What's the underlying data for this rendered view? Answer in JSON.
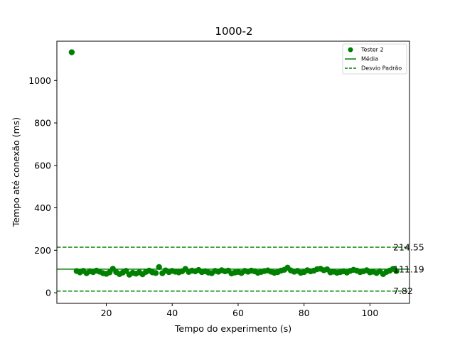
{
  "chart_data": {
    "type": "scatter",
    "title": "1000-2",
    "xlabel": "Tempo do experimento (s)",
    "ylabel": "Tempo até conexão (ms)",
    "xlim": [
      5,
      112
    ],
    "ylim": [
      -50,
      1185
    ],
    "xticks": [
      20,
      40,
      60,
      80,
      100
    ],
    "yticks": [
      0,
      200,
      400,
      600,
      800,
      1000
    ],
    "grid": false,
    "legend_position": "top-right",
    "color": "#008000",
    "series": [
      {
        "name": "Tester 2",
        "x": [
          9.5,
          11,
          12,
          13,
          14,
          15,
          16,
          17,
          18,
          19,
          20,
          21,
          22,
          23,
          24,
          25,
          26,
          27,
          28,
          29,
          30,
          31,
          32,
          33,
          34,
          35,
          36,
          37,
          38,
          39,
          40,
          41,
          42,
          43,
          44,
          45,
          46,
          47,
          48,
          49,
          50,
          51,
          52,
          53,
          54,
          55,
          56,
          57,
          58,
          59,
          60,
          61,
          62,
          63,
          64,
          65,
          66,
          67,
          68,
          69,
          70,
          71,
          72,
          73,
          74,
          75,
          76,
          77,
          78,
          79,
          80,
          81,
          82,
          83,
          84,
          85,
          86,
          87,
          88,
          89,
          90,
          91,
          92,
          93,
          94,
          95,
          96,
          97,
          98,
          99,
          100,
          101,
          102,
          103,
          104,
          105,
          106,
          107,
          108
        ],
        "y": [
          1133,
          102,
          96,
          103,
          92,
          101,
          97,
          104,
          99,
          92,
          89,
          96,
          113,
          97,
          88,
          95,
          103,
          85,
          94,
          90,
          96,
          87,
          98,
          104,
          96,
          93,
          121,
          92,
          105,
          97,
          103,
          99,
          96,
          101,
          112,
          98,
          104,
          101,
          107,
          97,
          101,
          95,
          92,
          103,
          99,
          106,
          101,
          104,
          91,
          95,
          98,
          93,
          103,
          99,
          104,
          101,
          94,
          98,
          102,
          105,
          99,
          94,
          97,
          104,
          108,
          118,
          105,
          99,
          103,
          94,
          97,
          106,
          101,
          104,
          111,
          113,
          106,
          110,
          96,
          99,
          94,
          97,
          101,
          95,
          103,
          108,
          104,
          97,
          101,
          106,
          96,
          99,
          93,
          101,
          88,
          98,
          104,
          112,
          102
        ]
      }
    ],
    "reference_lines": [
      {
        "name": "Média",
        "y": 111.19,
        "label": "111.19",
        "style": "solid"
      },
      {
        "name": "Desvio Padrão",
        "y": 214.55,
        "label": "214.55",
        "style": "dashed"
      },
      {
        "name": "Desvio Padrão",
        "y": 7.82,
        "label": "7.82",
        "style": "dashed"
      }
    ],
    "legend": [
      "Tester 2",
      "Média",
      "Desvio Padrão"
    ]
  }
}
